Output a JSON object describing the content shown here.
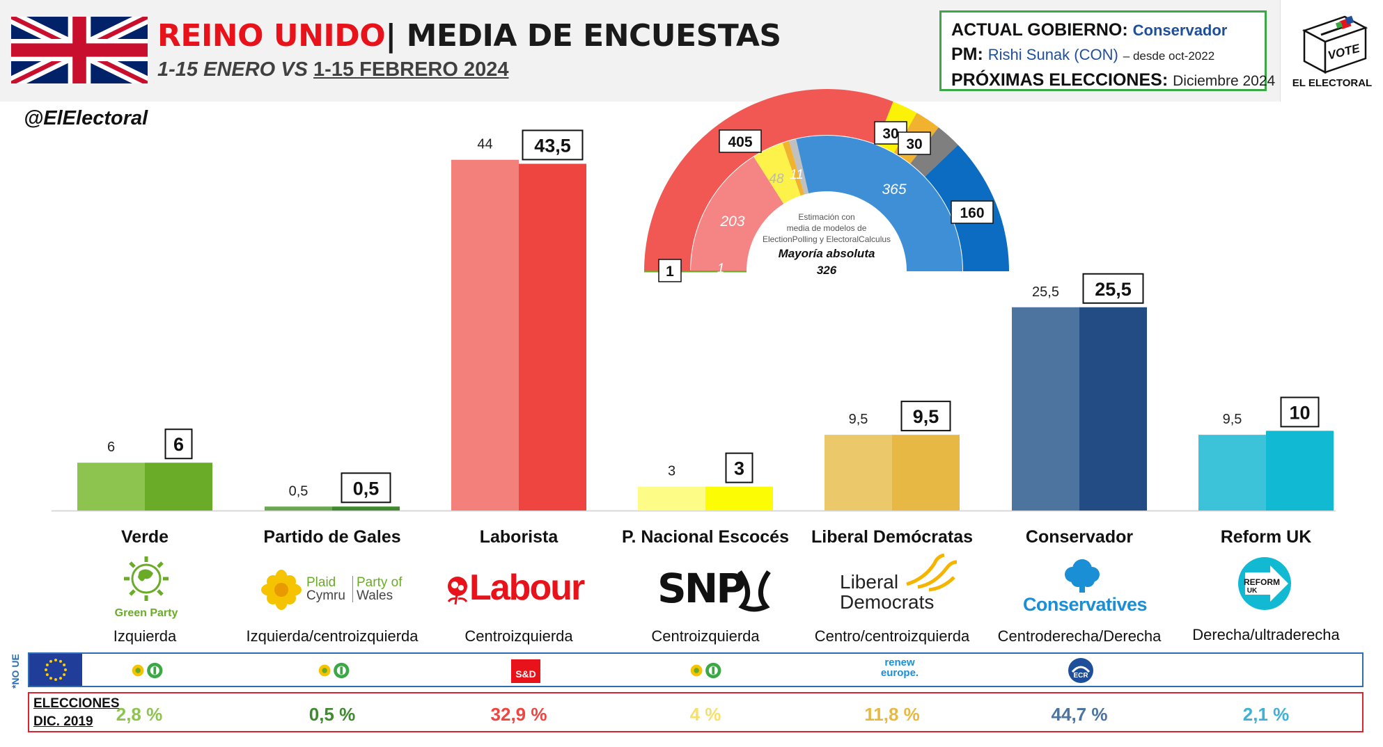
{
  "header": {
    "country": "REINO UNIDO",
    "separator": "|",
    "title": "MEDIA DE ENCUESTAS",
    "subtitle_a": "1-15 ENERO",
    "subtitle_vs": "VS",
    "subtitle_b": "1-15 FEBRERO 2024"
  },
  "government": {
    "label_gov": "ACTUAL GOBIERNO:",
    "gov": "Conservador",
    "label_pm": "PM:",
    "pm": "Rishi Sunak (CON)",
    "pm_since": "– desde oct-2022",
    "label_next": "PRÓXIMAS ELECCIONES:",
    "next": "Diciembre 2024"
  },
  "logo": {
    "vote": "VOTE",
    "brand": "EL ELECTORAL"
  },
  "handle": "@ElElectoral",
  "colors": {
    "green_prev": "#8dc34f",
    "green_cur": "#6aab28",
    "plaid_prev": "#6aa84f",
    "plaid_cur": "#3f8a2e",
    "labour_prev": "#f4807c",
    "labour_cur": "#ef4540",
    "snp_prev": "#fcfc86",
    "snp_cur": "#fcfc04",
    "libdem_prev": "#ebc86a",
    "libdem_cur": "#e8b845",
    "con_prev": "#4d739f",
    "con_cur": "#224c83",
    "reform_prev": "#3dc3d9",
    "reform_cur": "#12b9d3"
  },
  "chart_data": [
    {
      "type": "bar",
      "title": "MEDIA DE ENCUESTAS",
      "categories": [
        "Verde",
        "Partido de Gales",
        "Laborista",
        "P. Nacional Escocés",
        "Liberal Demócratas",
        "Conservador",
        "Reform UK"
      ],
      "series": [
        {
          "name": "1-15 ENERO",
          "values": [
            6,
            0.5,
            44,
            3,
            9.5,
            25.5,
            9.5
          ],
          "labels": [
            "6",
            "0,5",
            "44",
            "3",
            "9,5",
            "25,5",
            "9,5"
          ]
        },
        {
          "name": "1-15 FEBRERO 2024",
          "values": [
            6,
            0.5,
            43.5,
            3,
            9.5,
            25.5,
            10
          ],
          "labels": [
            "6",
            "0,5",
            "43,5",
            "3",
            "9,5",
            "25,5",
            "10"
          ]
        }
      ],
      "ylim": [
        0,
        45
      ],
      "grid": false
    },
    {
      "type": "pie",
      "outer_ring": [
        {
          "label": "1",
          "value": 1,
          "color": "#6aab28"
        },
        {
          "label": "405",
          "value": 405,
          "color": "#f25853"
        },
        {
          "label": "30",
          "value": 30,
          "color": "#fcf208"
        },
        {
          "label": "30",
          "value": 30,
          "color": "#f1b32f"
        },
        {
          "label": "",
          "value": 30,
          "color": "#7f7f7f"
        },
        {
          "label": "160",
          "value": 160,
          "color": "#0b6cc1"
        }
      ],
      "inner_ring": [
        {
          "label": "1",
          "value": 1,
          "color": "#6aab28"
        },
        {
          "label": "203",
          "value": 203,
          "color": "#f58585"
        },
        {
          "label": "48",
          "value": 48,
          "color": "#fcf24a"
        },
        {
          "label": "",
          "value": 10,
          "color": "#f1b32f"
        },
        {
          "label": "11",
          "value": 11,
          "color": "#c0c0c0"
        },
        {
          "label": "365",
          "value": 365,
          "color": "#3e8fd5"
        }
      ],
      "note": "Estimación con media de modelos de ElectionPolling y ElectoralCalculus",
      "majority_label": "Mayoría absoluta",
      "majority_value": "326"
    }
  ],
  "parties": [
    {
      "name": "Verde",
      "ideology": "Izquierda",
      "logo": "Green Party",
      "group": "greens-efa",
      "result_2019": "2,8 %",
      "result_color": "#8dc34f"
    },
    {
      "name": "Partido de Gales",
      "ideology": "Izquierda/centroizquierda",
      "logo_a": "Plaid",
      "logo_b": "Cymru",
      "logo_c": "Party of",
      "logo_d": "Wales",
      "group": "greens-efa",
      "result_2019": "0,5 %",
      "result_color": "#3f8a2e"
    },
    {
      "name": "Laborista",
      "ideology": "Centroizquierda",
      "logo": "Labour",
      "group": "S&D",
      "result_2019": "32,9 %",
      "result_color": "#ef4540"
    },
    {
      "name": "P. Nacional Escocés",
      "ideology": "Centroizquierda",
      "logo": "SNP",
      "group": "greens-efa",
      "result_2019": "4 %",
      "result_color": "#f4e06a"
    },
    {
      "name": "Liberal Demócratas",
      "ideology": "Centro/centroizquierda",
      "logo_a": "Liberal",
      "logo_b": "Democrats",
      "group_a": "renew",
      "group_b": "europe.",
      "result_2019": "11,8 %",
      "result_color": "#e8b845"
    },
    {
      "name": "Conservador",
      "ideology": "Centroderecha/Derecha",
      "logo": "Conservatives",
      "group": "ECR",
      "result_2019": "44,7 %",
      "result_color": "#4d739f"
    },
    {
      "name": "Reform UK",
      "ideology": "Derecha/ultraderecha",
      "logo_a": "REFORM",
      "logo_b": "UK",
      "group": "",
      "result_2019": "2,1 %",
      "result_color": "#3fb0d8"
    }
  ],
  "footer": {
    "no_ue": "*NO UE",
    "elections_label_a": "ELECCIONES",
    "elections_label_b": "DIC. 2019",
    "sd_badge": "S&D"
  }
}
